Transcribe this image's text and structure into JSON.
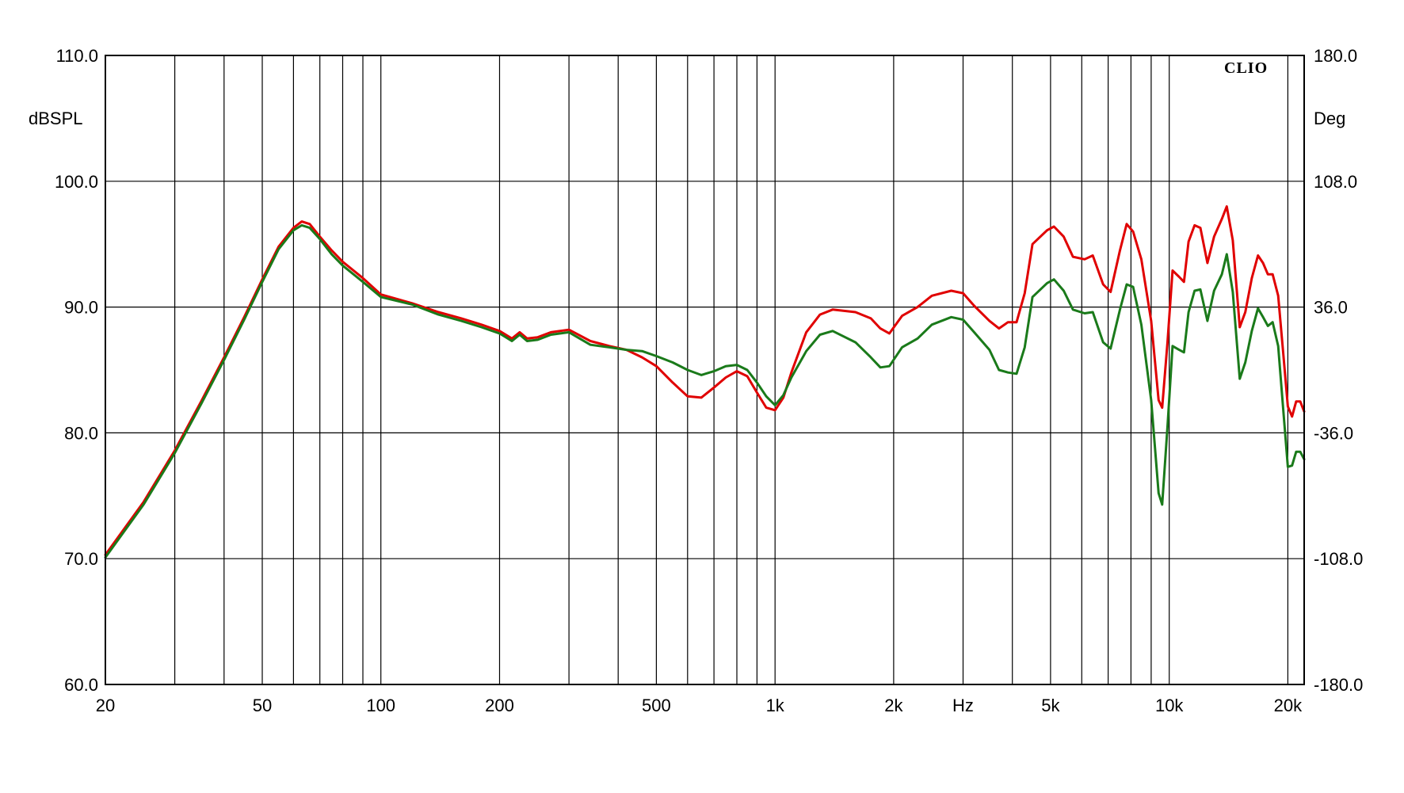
{
  "chart_data": {
    "type": "line",
    "title": "",
    "brand": "CLIO",
    "xscale": "log",
    "xlim": [
      20,
      22000
    ],
    "ylim": [
      60,
      110
    ],
    "y2lim": [
      -180,
      180
    ],
    "ylabel": "dBSPL",
    "y2label": "Deg",
    "xlabel": "Hz",
    "grid": true,
    "x_ticks": [
      {
        "value": 20,
        "label": "20"
      },
      {
        "value": 50,
        "label": "50"
      },
      {
        "value": 100,
        "label": "100"
      },
      {
        "value": 200,
        "label": "200"
      },
      {
        "value": 500,
        "label": "500"
      },
      {
        "value": 1000,
        "label": "1k"
      },
      {
        "value": 2000,
        "label": "2k"
      },
      {
        "value": 5000,
        "label": "5k"
      },
      {
        "value": 10000,
        "label": "10k"
      },
      {
        "value": 20000,
        "label": "20k"
      }
    ],
    "x_gridlines": [
      20,
      30,
      40,
      50,
      60,
      70,
      80,
      90,
      100,
      200,
      300,
      400,
      500,
      600,
      700,
      800,
      900,
      1000,
      2000,
      3000,
      4000,
      5000,
      6000,
      7000,
      8000,
      9000,
      10000,
      20000
    ],
    "y_ticks": [
      {
        "value": 60,
        "label": "60.0"
      },
      {
        "value": 70,
        "label": "70.0"
      },
      {
        "value": 80,
        "label": "80.0"
      },
      {
        "value": 90,
        "label": "90.0"
      },
      {
        "value": 100,
        "label": "100.0"
      },
      {
        "value": 110,
        "label": "110.0"
      }
    ],
    "y2_ticks": [
      {
        "value": -180,
        "label": "-180.0"
      },
      {
        "value": -108,
        "label": "-108.0"
      },
      {
        "value": -36,
        "label": "-36.0"
      },
      {
        "value": 36,
        "label": "36.0"
      },
      {
        "value": 108,
        "label": "108.0"
      },
      {
        "value": 180,
        "label": "180.0"
      }
    ],
    "series": [
      {
        "color": "#e00000",
        "points": [
          [
            20,
            70.3
          ],
          [
            25,
            74.5
          ],
          [
            30,
            78.6
          ],
          [
            35,
            82.5
          ],
          [
            40,
            86.0
          ],
          [
            45,
            89.2
          ],
          [
            50,
            92.2
          ],
          [
            55,
            94.8
          ],
          [
            60,
            96.3
          ],
          [
            63,
            96.8
          ],
          [
            66,
            96.6
          ],
          [
            70,
            95.6
          ],
          [
            75,
            94.5
          ],
          [
            80,
            93.6
          ],
          [
            90,
            92.3
          ],
          [
            100,
            91.0
          ],
          [
            120,
            90.3
          ],
          [
            140,
            89.6
          ],
          [
            160,
            89.1
          ],
          [
            180,
            88.6
          ],
          [
            200,
            88.1
          ],
          [
            215,
            87.5
          ],
          [
            225,
            88.0
          ],
          [
            235,
            87.5
          ],
          [
            250,
            87.6
          ],
          [
            270,
            88.0
          ],
          [
            300,
            88.2
          ],
          [
            340,
            87.3
          ],
          [
            380,
            86.9
          ],
          [
            420,
            86.6
          ],
          [
            460,
            86.0
          ],
          [
            500,
            85.3
          ],
          [
            550,
            84.0
          ],
          [
            600,
            82.9
          ],
          [
            650,
            82.8
          ],
          [
            700,
            83.6
          ],
          [
            750,
            84.4
          ],
          [
            800,
            84.9
          ],
          [
            850,
            84.5
          ],
          [
            900,
            83.2
          ],
          [
            950,
            82.0
          ],
          [
            1000,
            81.8
          ],
          [
            1050,
            82.8
          ],
          [
            1100,
            84.8
          ],
          [
            1200,
            88.0
          ],
          [
            1300,
            89.4
          ],
          [
            1400,
            89.8
          ],
          [
            1600,
            89.6
          ],
          [
            1750,
            89.1
          ],
          [
            1850,
            88.3
          ],
          [
            1950,
            87.9
          ],
          [
            2100,
            89.3
          ],
          [
            2300,
            90.0
          ],
          [
            2500,
            90.9
          ],
          [
            2800,
            91.3
          ],
          [
            3000,
            91.1
          ],
          [
            3200,
            90.1
          ],
          [
            3500,
            88.9
          ],
          [
            3700,
            88.3
          ],
          [
            3900,
            88.8
          ],
          [
            4100,
            88.8
          ],
          [
            4300,
            91.1
          ],
          [
            4500,
            95.0
          ],
          [
            4900,
            96.1
          ],
          [
            5100,
            96.4
          ],
          [
            5400,
            95.6
          ],
          [
            5700,
            94.0
          ],
          [
            6100,
            93.8
          ],
          [
            6400,
            94.1
          ],
          [
            6800,
            91.8
          ],
          [
            7100,
            91.2
          ],
          [
            7500,
            94.5
          ],
          [
            7800,
            96.6
          ],
          [
            8100,
            96.0
          ],
          [
            8500,
            93.8
          ],
          [
            9000,
            88.9
          ],
          [
            9400,
            82.6
          ],
          [
            9600,
            82.0
          ],
          [
            9900,
            87.2
          ],
          [
            10200,
            92.9
          ],
          [
            10600,
            92.4
          ],
          [
            10900,
            92.0
          ],
          [
            11200,
            95.2
          ],
          [
            11600,
            96.5
          ],
          [
            12000,
            96.3
          ],
          [
            12500,
            93.5
          ],
          [
            13000,
            95.6
          ],
          [
            13600,
            97.0
          ],
          [
            14000,
            98.0
          ],
          [
            14500,
            95.3
          ],
          [
            15100,
            88.4
          ],
          [
            15600,
            89.6
          ],
          [
            16200,
            92.3
          ],
          [
            16800,
            94.1
          ],
          [
            17300,
            93.5
          ],
          [
            17800,
            92.6
          ],
          [
            18300,
            92.6
          ],
          [
            18900,
            90.9
          ],
          [
            19500,
            86.1
          ],
          [
            20000,
            82.1
          ],
          [
            20500,
            81.3
          ],
          [
            21000,
            82.5
          ],
          [
            21500,
            82.5
          ],
          [
            22000,
            81.7
          ]
        ]
      },
      {
        "color": "#1a7a1a",
        "points": [
          [
            20,
            70.1
          ],
          [
            25,
            74.3
          ],
          [
            30,
            78.4
          ],
          [
            35,
            82.3
          ],
          [
            40,
            85.8
          ],
          [
            45,
            89.0
          ],
          [
            50,
            92.0
          ],
          [
            55,
            94.6
          ],
          [
            60,
            96.1
          ],
          [
            63,
            96.5
          ],
          [
            66,
            96.3
          ],
          [
            70,
            95.4
          ],
          [
            75,
            94.2
          ],
          [
            80,
            93.3
          ],
          [
            90,
            92.0
          ],
          [
            100,
            90.8
          ],
          [
            120,
            90.2
          ],
          [
            140,
            89.4
          ],
          [
            160,
            88.9
          ],
          [
            180,
            88.4
          ],
          [
            200,
            87.9
          ],
          [
            215,
            87.3
          ],
          [
            225,
            87.8
          ],
          [
            235,
            87.3
          ],
          [
            250,
            87.4
          ],
          [
            270,
            87.8
          ],
          [
            300,
            88.0
          ],
          [
            340,
            87.0
          ],
          [
            380,
            86.8
          ],
          [
            420,
            86.6
          ],
          [
            460,
            86.5
          ],
          [
            500,
            86.1
          ],
          [
            550,
            85.6
          ],
          [
            600,
            85.0
          ],
          [
            650,
            84.6
          ],
          [
            700,
            84.9
          ],
          [
            750,
            85.3
          ],
          [
            800,
            85.4
          ],
          [
            850,
            85.0
          ],
          [
            900,
            84.0
          ],
          [
            950,
            82.9
          ],
          [
            1000,
            82.2
          ],
          [
            1050,
            83.0
          ],
          [
            1100,
            84.4
          ],
          [
            1200,
            86.5
          ],
          [
            1300,
            87.8
          ],
          [
            1400,
            88.1
          ],
          [
            1600,
            87.2
          ],
          [
            1750,
            86.0
          ],
          [
            1850,
            85.2
          ],
          [
            1950,
            85.3
          ],
          [
            2100,
            86.8
          ],
          [
            2300,
            87.5
          ],
          [
            2500,
            88.6
          ],
          [
            2800,
            89.2
          ],
          [
            3000,
            89.0
          ],
          [
            3200,
            88.0
          ],
          [
            3500,
            86.6
          ],
          [
            3700,
            85.0
          ],
          [
            3900,
            84.8
          ],
          [
            4100,
            84.7
          ],
          [
            4300,
            86.8
          ],
          [
            4500,
            90.8
          ],
          [
            4900,
            91.9
          ],
          [
            5100,
            92.2
          ],
          [
            5400,
            91.3
          ],
          [
            5700,
            89.8
          ],
          [
            6100,
            89.5
          ],
          [
            6400,
            89.6
          ],
          [
            6800,
            87.2
          ],
          [
            7100,
            86.7
          ],
          [
            7500,
            89.8
          ],
          [
            7800,
            91.8
          ],
          [
            8100,
            91.6
          ],
          [
            8500,
            88.6
          ],
          [
            9000,
            82.6
          ],
          [
            9400,
            75.2
          ],
          [
            9600,
            74.3
          ],
          [
            9900,
            80.5
          ],
          [
            10200,
            86.9
          ],
          [
            10600,
            86.6
          ],
          [
            10900,
            86.4
          ],
          [
            11200,
            89.6
          ],
          [
            11600,
            91.3
          ],
          [
            12000,
            91.4
          ],
          [
            12500,
            88.9
          ],
          [
            13000,
            91.3
          ],
          [
            13600,
            92.6
          ],
          [
            14000,
            94.2
          ],
          [
            14500,
            91.2
          ],
          [
            15100,
            84.3
          ],
          [
            15600,
            85.6
          ],
          [
            16200,
            88.1
          ],
          [
            16800,
            89.9
          ],
          [
            17300,
            89.2
          ],
          [
            17800,
            88.5
          ],
          [
            18300,
            88.8
          ],
          [
            18900,
            86.9
          ],
          [
            19500,
            81.6
          ],
          [
            20000,
            77.3
          ],
          [
            20500,
            77.4
          ],
          [
            21000,
            78.5
          ],
          [
            21500,
            78.5
          ],
          [
            22000,
            77.9
          ]
        ]
      }
    ]
  }
}
